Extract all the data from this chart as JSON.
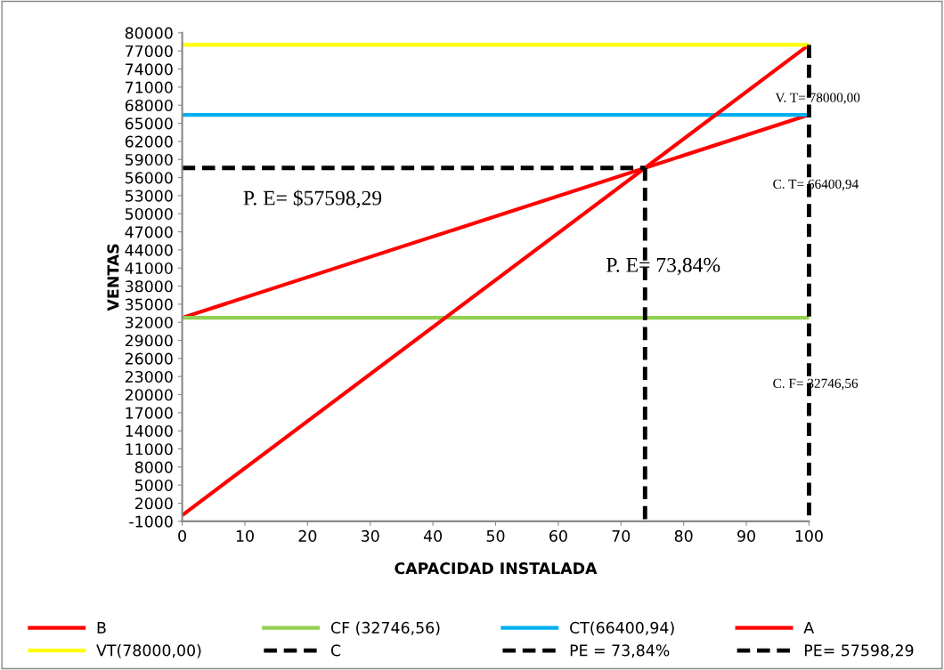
{
  "chart_data": {
    "type": "line",
    "xlabel": "CAPACIDAD INSTALADA",
    "ylabel": "VENTAS",
    "xlim": [
      0,
      100
    ],
    "xticks": [
      0,
      10,
      20,
      30,
      40,
      50,
      60,
      70,
      80,
      90,
      100
    ],
    "ylim": [
      -1000,
      80000
    ],
    "yticks": [
      -1000,
      2000,
      5000,
      8000,
      11000,
      14000,
      17000,
      20000,
      23000,
      26000,
      29000,
      32000,
      35000,
      38000,
      41000,
      44000,
      47000,
      50000,
      53000,
      56000,
      59000,
      62000,
      65000,
      68000,
      71000,
      74000,
      77000,
      80000
    ],
    "grid": false,
    "legend": "bottom",
    "series": [
      {
        "name": "B",
        "color": "#ff0000",
        "x": [
          0,
          100
        ],
        "values": [
          32746.56,
          66400.94
        ]
      },
      {
        "name": "CF (32746,56)",
        "color": "#92d050",
        "x": [
          0,
          100
        ],
        "values": [
          32746.56,
          32746.56
        ]
      },
      {
        "name": "CT(66400,94)",
        "color": "#00b0f0",
        "x": [
          0,
          100
        ],
        "values": [
          66400.94,
          66400.94
        ]
      },
      {
        "name": "A",
        "color": "#ff0000",
        "x": [
          0,
          100
        ],
        "values": [
          0,
          78000
        ]
      },
      {
        "name": "VT(78000,00)",
        "color": "#ffff00",
        "x": [
          0,
          100
        ],
        "values": [
          78000,
          78000
        ]
      },
      {
        "name": "C",
        "color": "#000000",
        "line_style": "dashed",
        "x": [
          100,
          100
        ],
        "values": [
          78000,
          -1000
        ]
      },
      {
        "name": "PE = 73,84%",
        "color": "#000000",
        "line_style": "dashed",
        "x": [
          73.84,
          73.84
        ],
        "values": [
          57598.29,
          -1000
        ]
      },
      {
        "name": "PE= 57598,29",
        "color": "#000000",
        "line_style": "dashed",
        "x": [
          0,
          73.84
        ],
        "values": [
          57598.29,
          57598.29
        ]
      }
    ],
    "annotations": [
      "V. T= 78000,00",
      "C. T= 66400,94",
      "P. E= $57598,29",
      "P. E= 73,84%",
      "C. F= 32746,56"
    ]
  }
}
